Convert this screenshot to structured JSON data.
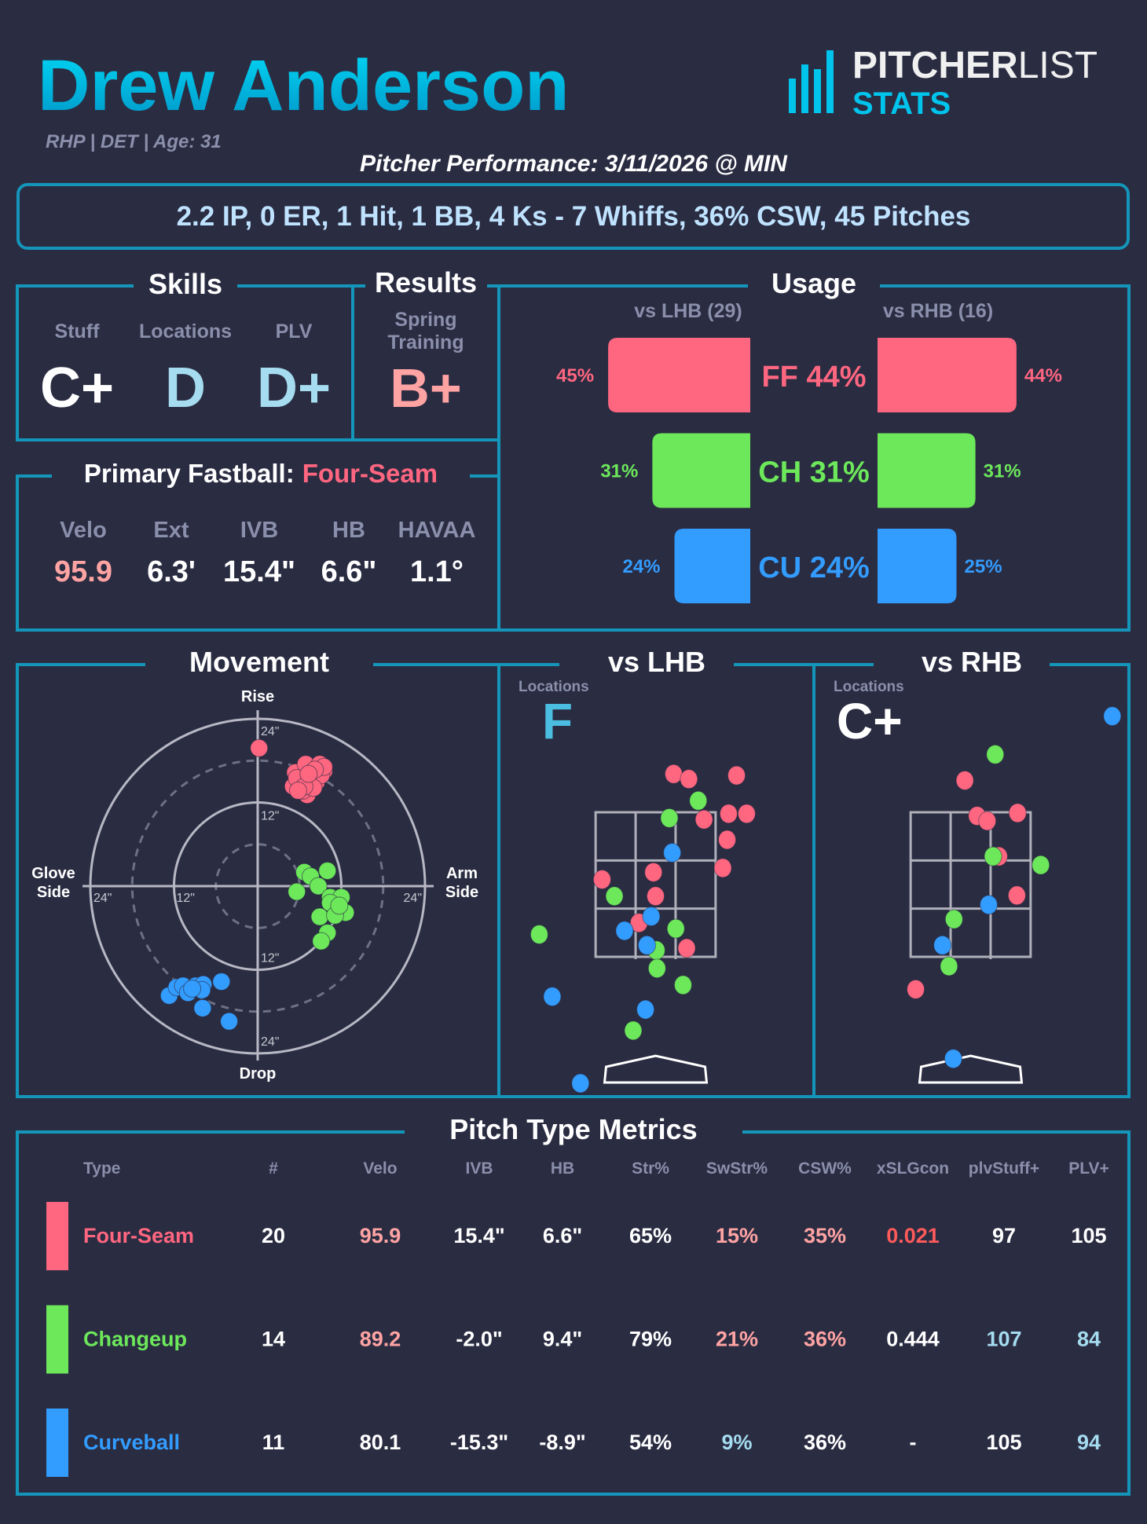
{
  "colors": {
    "background": "#2a2c42",
    "border": "#1496ba",
    "four_seam": "#ff6680",
    "changeup": "#6ce85a",
    "curveball": "#339cff",
    "muted": "#8a8fab",
    "summary_text": "#bfe3ff"
  },
  "header": {
    "name": "Drew Anderson",
    "subtitle": "RHP | DET | Age: 31",
    "performance": "Pitcher Performance: 3/11/2026 @ MIN",
    "summary": "2.2 IP, 0 ER, 1 Hit, 1 BB, 4 Ks - 7 Whiffs, 36% CSW, 45 Pitches"
  },
  "logo": {
    "text_bold": "PITCHER",
    "text_light": "LIST",
    "sub": "STATS"
  },
  "skills": {
    "title": "Skills",
    "items": [
      {
        "label": "Stuff",
        "grade": "C+",
        "color": "#ffffff"
      },
      {
        "label": "Locations",
        "grade": "D",
        "color": "#a5dcf0"
      },
      {
        "label": "PLV",
        "grade": "D+",
        "color": "#a5dcf0"
      }
    ]
  },
  "results": {
    "title": "Results",
    "label_line1": "Spring",
    "label_line2": "Training",
    "grade": "B+",
    "color": "#ffa3a3"
  },
  "primary_fastball": {
    "title": "Primary Fastball:",
    "pitch": "Four-Seam",
    "metrics": [
      {
        "label": "Velo",
        "value": "95.9",
        "color": "#ffa3a3"
      },
      {
        "label": "Ext",
        "value": "6.3'",
        "color": "#ffffff"
      },
      {
        "label": "IVB",
        "value": "15.4\"",
        "color": "#ffffff"
      },
      {
        "label": "HB",
        "value": "6.6\"",
        "color": "#ffffff"
      },
      {
        "label": "HAVAA",
        "value": "1.1°",
        "color": "#ffffff"
      }
    ]
  },
  "usage": {
    "title": "Usage",
    "lhb_label": "vs LHB (29)",
    "rhb_label": "vs RHB (16)",
    "rows": [
      {
        "pitch": "FF",
        "overall_label": "FF 44%",
        "lhb": 45,
        "rhb": 44,
        "color": "#ff6680"
      },
      {
        "pitch": "CH",
        "overall_label": "CH 31%",
        "lhb": 31,
        "rhb": 31,
        "color": "#6ce85a"
      },
      {
        "pitch": "CU",
        "overall_label": "CU 24%",
        "lhb": 24,
        "rhb": 25,
        "color": "#339cff"
      }
    ]
  },
  "movement": {
    "title": "Movement",
    "top_label": "Rise",
    "bottom_label": "Drop",
    "left_label_1": "Glove",
    "left_label_2": "Side",
    "right_label_1": "Arm",
    "right_label_2": "Side",
    "tick_24": "24\"",
    "tick_12": "12\"",
    "max_inches": 24,
    "pitches": [
      {
        "type": "Four-Seam",
        "color": "#ff6680",
        "points": [
          [
            0.2,
            19.8
          ],
          [
            5.4,
            16.3
          ],
          [
            6.9,
            17.5
          ],
          [
            8.9,
            17.5
          ],
          [
            9.5,
            16.5
          ],
          [
            7.8,
            16.3
          ],
          [
            6.0,
            15.1
          ],
          [
            8.4,
            14.9
          ],
          [
            5.1,
            14.3
          ],
          [
            7.1,
            13.1
          ],
          [
            6.5,
            13.7
          ],
          [
            7.6,
            15.3
          ],
          [
            9.1,
            15.9
          ],
          [
            5.6,
            15.5
          ],
          [
            8.0,
            14.1
          ],
          [
            6.7,
            14.3
          ],
          [
            9.5,
            17.1
          ],
          [
            8.2,
            16.7
          ],
          [
            5.8,
            13.7
          ],
          [
            7.3,
            16.1
          ]
        ]
      },
      {
        "type": "Changeup",
        "color": "#6ce85a",
        "points": [
          [
            6.7,
            2.0
          ],
          [
            7.6,
            1.4
          ],
          [
            10.0,
            2.2
          ],
          [
            8.7,
            0.0
          ],
          [
            5.6,
            -0.8
          ],
          [
            10.4,
            -1.6
          ],
          [
            12.0,
            -1.6
          ],
          [
            10.4,
            -2.4
          ],
          [
            12.6,
            -3.8
          ],
          [
            8.9,
            -4.4
          ],
          [
            11.1,
            -4.2
          ],
          [
            10.0,
            -6.7
          ],
          [
            9.1,
            -7.9
          ],
          [
            11.7,
            -2.8
          ]
        ]
      },
      {
        "type": "Curveball",
        "color": "#339cff",
        "points": [
          [
            -12.7,
            -15.7
          ],
          [
            -11.6,
            -14.5
          ],
          [
            -10.7,
            -14.3
          ],
          [
            -10.0,
            -15.3
          ],
          [
            -8.9,
            -14.3
          ],
          [
            -7.8,
            -14.1
          ],
          [
            -8.0,
            -14.9
          ],
          [
            -5.2,
            -13.7
          ],
          [
            -7.9,
            -17.5
          ],
          [
            -4.1,
            -19.4
          ],
          [
            -9.4,
            -14.7
          ]
        ]
      }
    ]
  },
  "locations": [
    {
      "title": "vs LHB",
      "grade_label": "Locations",
      "grade": "F",
      "grade_color": "#4bbde0",
      "pitches": [
        {
          "type": "Four-Seam",
          "color": "#ff6680",
          "points": [
            [
              0.25,
              4.03
            ],
            [
              0.46,
              3.96
            ],
            [
              1.12,
              4.01
            ],
            [
              1.01,
              3.48
            ],
            [
              1.26,
              3.48
            ],
            [
              0.67,
              3.4
            ],
            [
              0.99,
              3.12
            ],
            [
              0.93,
              2.73
            ],
            [
              -0.74,
              2.57
            ],
            [
              -0.03,
              2.67
            ],
            [
              0.0,
              2.34
            ],
            [
              -0.23,
              1.97
            ],
            [
              0.43,
              1.62
            ]
          ]
        },
        {
          "type": "Changeup",
          "color": "#6ce85a",
          "points": [
            [
              0.59,
              3.66
            ],
            [
              0.19,
              3.42
            ],
            [
              -0.57,
              2.34
            ],
            [
              -1.61,
              1.81
            ],
            [
              0.28,
              1.89
            ],
            [
              0.01,
              1.59
            ],
            [
              0.02,
              1.34
            ],
            [
              0.38,
              1.11
            ],
            [
              -0.31,
              0.48
            ]
          ]
        },
        {
          "type": "Curveball",
          "color": "#339cff",
          "points": [
            [
              0.23,
              2.94
            ],
            [
              -0.06,
              2.06
            ],
            [
              -0.43,
              1.86
            ],
            [
              -0.12,
              1.66
            ],
            [
              -1.43,
              0.95
            ],
            [
              -0.14,
              0.77
            ],
            [
              -1.04,
              -0.25
            ]
          ]
        }
      ]
    },
    {
      "title": "vs RHB",
      "grade_label": "Locations",
      "grade": "C+",
      "grade_color": "#ffffff",
      "pitches": [
        {
          "type": "Four-Seam",
          "color": "#ff6680",
          "points": [
            [
              -0.08,
              3.94
            ],
            [
              0.09,
              3.45
            ],
            [
              0.23,
              3.38
            ],
            [
              0.65,
              3.49
            ],
            [
              0.39,
              2.89
            ],
            [
              0.64,
              2.35
            ],
            [
              -0.76,
              1.05
            ]
          ]
        },
        {
          "type": "Changeup",
          "color": "#6ce85a",
          "points": [
            [
              0.34,
              4.3
            ],
            [
              0.31,
              2.89
            ],
            [
              0.97,
              2.77
            ],
            [
              -0.23,
              2.02
            ],
            [
              -0.3,
              1.37
            ]
          ]
        },
        {
          "type": "Curveball",
          "color": "#339cff",
          "points": [
            [
              1.96,
              4.83
            ],
            [
              0.25,
              2.22
            ],
            [
              -0.39,
              1.66
            ],
            [
              -0.24,
              0.09
            ]
          ]
        }
      ]
    }
  ],
  "table": {
    "title": "Pitch Type Metrics",
    "columns": [
      "Type",
      "#",
      "Velo",
      "IVB",
      "HB",
      "Str%",
      "SwStr%",
      "CSW%",
      "xSLGcon",
      "plvStuff+",
      "PLV+"
    ],
    "rows": [
      {
        "color": "#ff6680",
        "cells": [
          {
            "v": "Four-Seam",
            "c": "#ff6680"
          },
          {
            "v": "20",
            "c": "#ffffff"
          },
          {
            "v": "95.9",
            "c": "#ffa3a3"
          },
          {
            "v": "15.4\"",
            "c": "#ffffff"
          },
          {
            "v": "6.6\"",
            "c": "#ffffff"
          },
          {
            "v": "65%",
            "c": "#ffffff"
          },
          {
            "v": "15%",
            "c": "#ffa3a3"
          },
          {
            "v": "35%",
            "c": "#ffa3a3"
          },
          {
            "v": "0.021",
            "c": "#ff5a5a"
          },
          {
            "v": "97",
            "c": "#ffffff"
          },
          {
            "v": "105",
            "c": "#ffffff"
          }
        ]
      },
      {
        "color": "#6ce85a",
        "cells": [
          {
            "v": "Changeup",
            "c": "#6ce85a"
          },
          {
            "v": "14",
            "c": "#ffffff"
          },
          {
            "v": "89.2",
            "c": "#ffa3a3"
          },
          {
            "v": "-2.0\"",
            "c": "#ffffff"
          },
          {
            "v": "9.4\"",
            "c": "#ffffff"
          },
          {
            "v": "79%",
            "c": "#ffffff"
          },
          {
            "v": "21%",
            "c": "#ffa3a3"
          },
          {
            "v": "36%",
            "c": "#ffa3a3"
          },
          {
            "v": "0.444",
            "c": "#ffffff"
          },
          {
            "v": "107",
            "c": "#a5dcf0"
          },
          {
            "v": "84",
            "c": "#a5dcf0"
          }
        ]
      },
      {
        "color": "#339cff",
        "cells": [
          {
            "v": "Curveball",
            "c": "#339cff"
          },
          {
            "v": "11",
            "c": "#ffffff"
          },
          {
            "v": "80.1",
            "c": "#ffffff"
          },
          {
            "v": "-15.3\"",
            "c": "#ffffff"
          },
          {
            "v": "-8.9\"",
            "c": "#ffffff"
          },
          {
            "v": "54%",
            "c": "#ffffff"
          },
          {
            "v": "9%",
            "c": "#a5dcf0"
          },
          {
            "v": "36%",
            "c": "#ffffff"
          },
          {
            "v": "-",
            "c": "#ffffff"
          },
          {
            "v": "105",
            "c": "#ffffff"
          },
          {
            "v": "94",
            "c": "#a5dcf0"
          }
        ]
      }
    ]
  }
}
